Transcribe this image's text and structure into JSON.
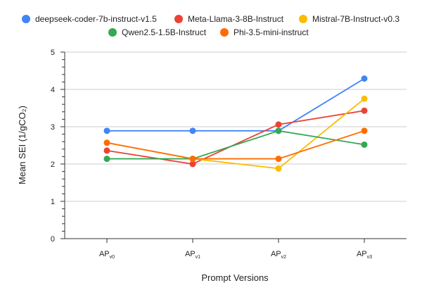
{
  "chart_data": {
    "type": "line",
    "title": "",
    "xlabel": "Prompt Versions",
    "ylabel": "Mean SEI (1/gCO₂)",
    "categories": [
      {
        "base": "AP",
        "sub": "v0"
      },
      {
        "base": "AP",
        "sub": "v1"
      },
      {
        "base": "AP",
        "sub": "v2"
      },
      {
        "base": "AP",
        "sub": "v3"
      }
    ],
    "ylim": [
      0,
      5
    ],
    "yticks": [
      "0",
      "1",
      "2",
      "3",
      "4",
      "5"
    ],
    "grid": true,
    "legend_position": "top",
    "series": [
      {
        "name": "deepseek-coder-7b-instruct-v1.5",
        "color": "#4285F4",
        "values": [
          2.89,
          2.89,
          2.89,
          4.29
        ]
      },
      {
        "name": "Meta-Llama-3-8B-Instruct",
        "color": "#EA4335",
        "values": [
          2.36,
          2.0,
          3.06,
          3.43
        ]
      },
      {
        "name": "Mistral-7B-Instruct-v0.3",
        "color": "#FBBC04",
        "values": [
          2.57,
          2.14,
          1.88,
          3.75
        ]
      },
      {
        "name": "Qwen2.5-1.5B-Instruct",
        "color": "#34A853",
        "values": [
          2.14,
          2.14,
          2.89,
          2.52
        ]
      },
      {
        "name": "Phi-3.5-mini-instruct",
        "color": "#FF6D01",
        "values": [
          2.57,
          2.14,
          2.14,
          2.89
        ]
      }
    ]
  }
}
